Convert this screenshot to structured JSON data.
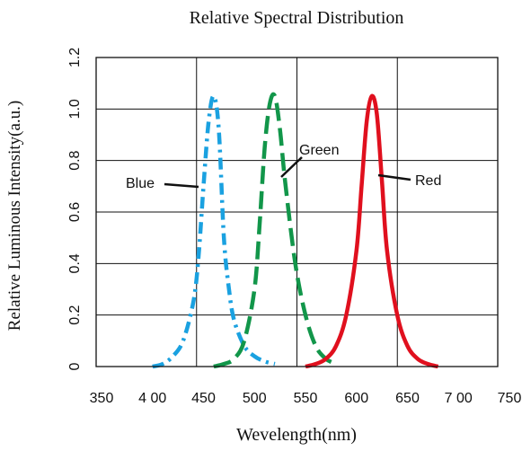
{
  "chart_data": {
    "type": "line",
    "title": "Relative Spectral Distribution",
    "xlabel": "Wevelength(nm)",
    "ylabel": "Relative Luminous Intensity(a.u.)",
    "xlim": [
      350,
      750
    ],
    "ylim": [
      0,
      1.2
    ],
    "grid": true,
    "x_tick_values": [
      350,
      400,
      450,
      500,
      550,
      600,
      650,
      700,
      750
    ],
    "x_tick_labels": [
      "350",
      "4 00",
      "450",
      "500",
      "550",
      "600",
      "650",
      "7 00",
      "750"
    ],
    "y_tick_values": [
      0,
      0.2,
      0.4,
      0.6,
      0.8,
      1.0,
      1.2
    ],
    "y_tick_labels": [
      "0",
      "0.2",
      "0.4",
      "0.6",
      "0.8",
      "1.0",
      "1.2"
    ],
    "series": [
      {
        "name": "Blue",
        "color": "#1AA1E0",
        "dash": "dash-dot",
        "x": [
          400,
          410,
          420,
          430,
          440,
          445,
          450,
          455,
          460,
          465,
          470,
          475,
          480,
          490,
          500,
          510,
          520
        ],
        "y": [
          0.0,
          0.01,
          0.04,
          0.1,
          0.25,
          0.42,
          0.7,
          0.95,
          1.05,
          0.92,
          0.5,
          0.3,
          0.18,
          0.08,
          0.04,
          0.02,
          0.01
        ]
      },
      {
        "name": "Green",
        "color": "#12964A",
        "dash": "dashed",
        "x": [
          460,
          470,
          480,
          490,
          500,
          505,
          510,
          515,
          520,
          525,
          530,
          540,
          550,
          560,
          570,
          580
        ],
        "y": [
          0.0,
          0.01,
          0.03,
          0.1,
          0.3,
          0.55,
          0.85,
          1.02,
          1.05,
          0.92,
          0.72,
          0.4,
          0.2,
          0.08,
          0.03,
          0.01
        ]
      },
      {
        "name": "Red",
        "color": "#E0101E",
        "dash": "solid",
        "x": [
          550,
          560,
          570,
          580,
          590,
          600,
          605,
          610,
          615,
          620,
          625,
          630,
          640,
          650,
          660,
          670,
          680
        ],
        "y": [
          0.0,
          0.01,
          0.03,
          0.08,
          0.2,
          0.45,
          0.7,
          0.95,
          1.05,
          0.98,
          0.72,
          0.45,
          0.2,
          0.08,
          0.03,
          0.01,
          0.0
        ]
      }
    ],
    "annotations": [
      {
        "text": "Blue",
        "series": "Blue",
        "x": 450,
        "y": 0.7
      },
      {
        "text": "Green",
        "series": "Green",
        "x": 528,
        "y": 0.72
      },
      {
        "text": "Red",
        "series": "Red",
        "x": 620,
        "y": 0.73
      }
    ]
  }
}
